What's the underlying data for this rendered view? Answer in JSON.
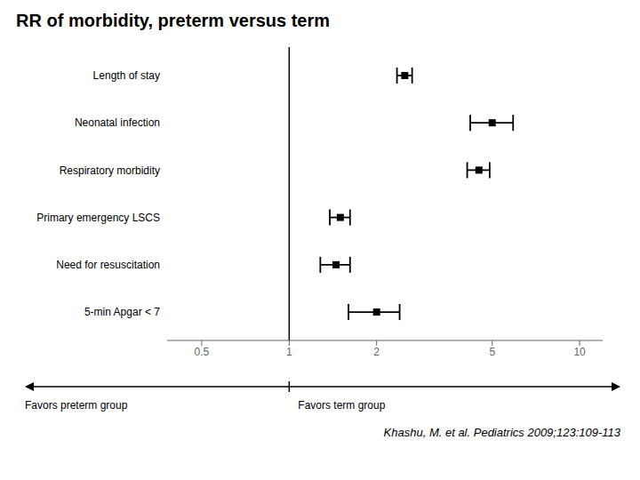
{
  "chart_data": {
    "type": "forest",
    "title": "RR of morbidity, preterm versus term",
    "categories": [
      "Length of stay",
      "Neonatal infection",
      "Respiratory morbidity",
      "Primary emergency LSCS",
      "Need for resuscitation",
      "5-min Apgar < 7"
    ],
    "values": [
      2.5,
      5.0,
      4.5,
      1.5,
      1.45,
      2.0
    ],
    "ci_low": [
      2.35,
      4.2,
      4.1,
      1.38,
      1.28,
      1.6
    ],
    "ci_high": [
      2.65,
      5.9,
      4.9,
      1.62,
      1.62,
      2.4
    ],
    "xlim": [
      0.38,
      12.0
    ],
    "xticks": [
      0.5,
      1,
      2,
      5,
      10
    ],
    "log": "x",
    "grid": false,
    "color": "#000000",
    "reference_line": 1.0,
    "annotations": [
      "Favors preterm group",
      "Favors term group",
      "Khashu, M. et al. Pediatrics 2009;123:109-113"
    ]
  }
}
